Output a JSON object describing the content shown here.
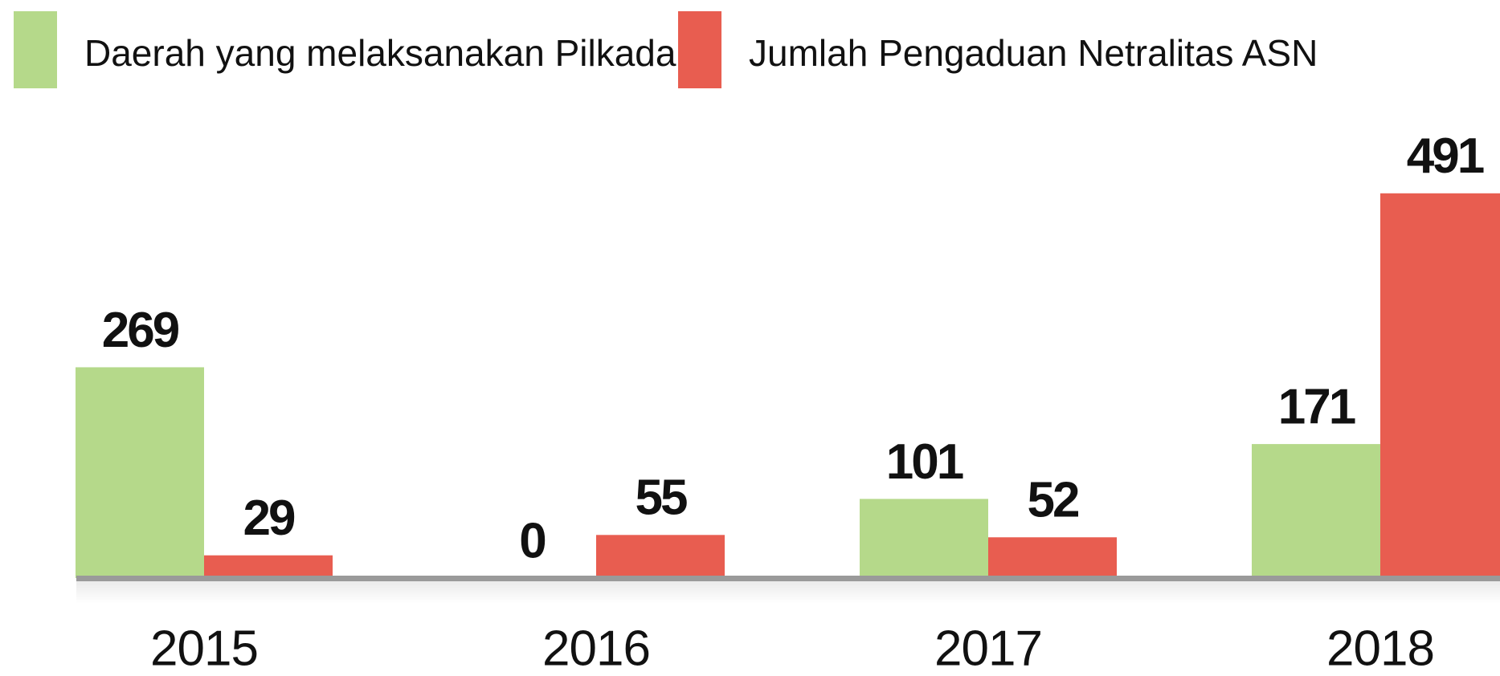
{
  "chart_data": {
    "type": "bar",
    "categories": [
      "2015",
      "2016",
      "2017",
      "2018"
    ],
    "series": [
      {
        "name": "Daerah yang melaksanakan Pilkada",
        "color": "#b5d98a",
        "values": [
          269,
          0,
          101,
          171
        ]
      },
      {
        "name": "Jumlah Pengaduan Netralitas ASN",
        "color": "#e85d50",
        "values": [
          29,
          55,
          52,
          491
        ]
      }
    ],
    "ylim": [
      0,
      500
    ]
  }
}
